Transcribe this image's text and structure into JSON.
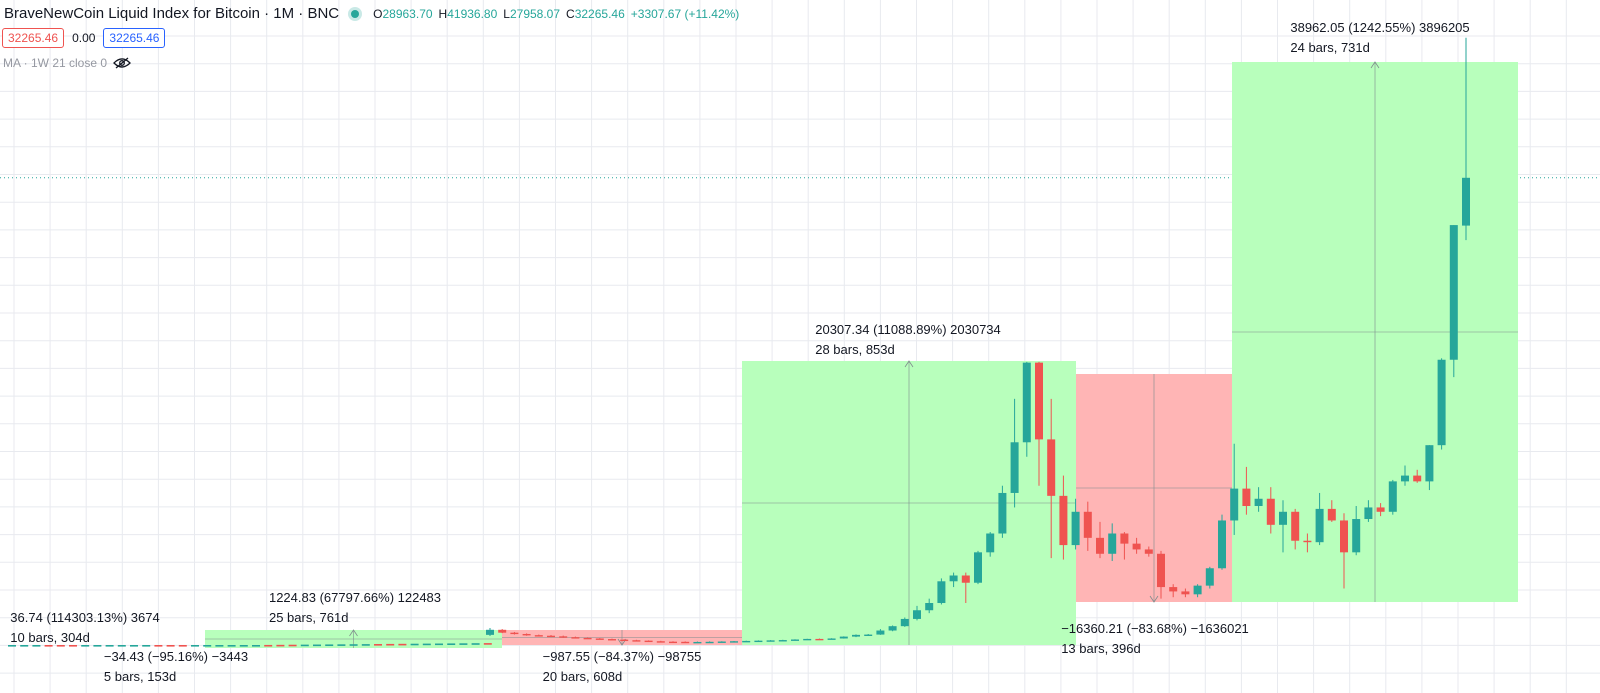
{
  "legend": {
    "title": "BraveNewCoin Liquid Index for Bitcoin · 1M · BNC",
    "open_key": "O",
    "open": "28963.70",
    "high_key": "H",
    "high": "41936.80",
    "low_key": "L",
    "low": "27958.07",
    "close_key": "C",
    "close": "32265.46",
    "change": "+3307.67 (+11.42%)"
  },
  "price_boxes": {
    "bid": "32265.46",
    "spread": "0.00",
    "ask": "32265.46"
  },
  "indicator": {
    "label": "MA · 1W 21 close 0",
    "icon": "eye-crossed-icon"
  },
  "colors": {
    "up": "#26a69a",
    "down": "#ef5350",
    "gain_fill": "#b8ffbc",
    "loss_fill": "#ffb5b5",
    "grid": "#e8eaef"
  },
  "measurements": [
    {
      "line1": "36.74 (114303.13%) 3674",
      "line2": "10 bars, 304d"
    },
    {
      "line1": "−34.43 (−95.16%) −3443",
      "line2": "5 bars, 153d"
    },
    {
      "line1": "1224.83 (67797.66%) 122483",
      "line2": "25 bars, 761d"
    },
    {
      "line1": "−987.55 (−84.37%) −98755",
      "line2": "20 bars, 608d"
    },
    {
      "line1": "20307.34 (11088.89%) 2030734",
      "line2": "28 bars, 853d"
    },
    {
      "line1": "−16360.21 (−83.68%) −1636021",
      "line2": "13 bars, 396d"
    },
    {
      "line1": "38962.05 (1242.55%) 3896205",
      "line2": "24 bars, 731d"
    }
  ],
  "chart_data": {
    "type": "candlestick",
    "interval": "1M",
    "last_close": 32265.46,
    "grid": true,
    "ranges": [
      {
        "kind": "gain",
        "start_price": 0.03,
        "change": 36.74,
        "pct": 114303.13,
        "bars": 10,
        "days": 304
      },
      {
        "kind": "loss",
        "change": -34.43,
        "pct": -95.16,
        "bars": 5,
        "days": 153
      },
      {
        "kind": "gain",
        "start_price": 1.81,
        "change": 1224.83,
        "pct": 67797.66,
        "bars": 25,
        "days": 761
      },
      {
        "kind": "loss",
        "start_price": 1170.38,
        "change": -987.55,
        "pct": -84.37,
        "bars": 20,
        "days": 608
      },
      {
        "kind": "gain",
        "start_price": 183.13,
        "change": 20307.34,
        "pct": 11088.89,
        "bars": 28,
        "days": 853
      },
      {
        "kind": "loss",
        "start_price": 19550.9,
        "change": -16360.21,
        "pct": -83.68,
        "bars": 13,
        "days": 396
      },
      {
        "kind": "gain",
        "start_price": 3135.69,
        "change": 38962.05,
        "pct": 1242.55,
        "bars": 24,
        "days": 731
      }
    ],
    "candles": [
      {
        "o": 700,
        "h": 1170,
        "l": 620,
        "c": 1050
      },
      {
        "o": 1050,
        "h": 1100,
        "l": 820,
        "c": 850
      },
      {
        "o": 850,
        "h": 900,
        "l": 720,
        "c": 760
      },
      {
        "o": 760,
        "h": 800,
        "l": 640,
        "c": 680
      },
      {
        "o": 680,
        "h": 720,
        "l": 600,
        "c": 640
      },
      {
        "o": 640,
        "h": 690,
        "l": 560,
        "c": 600
      },
      {
        "o": 600,
        "h": 650,
        "l": 500,
        "c": 540
      },
      {
        "o": 540,
        "h": 580,
        "l": 460,
        "c": 490
      },
      {
        "o": 490,
        "h": 520,
        "l": 420,
        "c": 450
      },
      {
        "o": 450,
        "h": 480,
        "l": 380,
        "c": 410
      },
      {
        "o": 410,
        "h": 440,
        "l": 340,
        "c": 370
      },
      {
        "o": 370,
        "h": 400,
        "l": 300,
        "c": 330
      },
      {
        "o": 330,
        "h": 360,
        "l": 270,
        "c": 300
      },
      {
        "o": 300,
        "h": 320,
        "l": 230,
        "c": 260
      },
      {
        "o": 260,
        "h": 290,
        "l": 200,
        "c": 230
      },
      {
        "o": 230,
        "h": 260,
        "l": 190,
        "c": 220
      },
      {
        "o": 220,
        "h": 250,
        "l": 190,
        "c": 200
      },
      {
        "o": 200,
        "h": 240,
        "l": 180,
        "c": 210
      },
      {
        "o": 210,
        "h": 250,
        "l": 190,
        "c": 220
      },
      {
        "o": 220,
        "h": 260,
        "l": 200,
        "c": 240
      },
      {
        "o": 240,
        "h": 280,
        "l": 220,
        "c": 260
      },
      {
        "o": 260,
        "h": 300,
        "l": 240,
        "c": 280
      },
      {
        "o": 280,
        "h": 320,
        "l": 260,
        "c": 300
      },
      {
        "o": 300,
        "h": 340,
        "l": 280,
        "c": 320
      },
      {
        "o": 320,
        "h": 360,
        "l": 300,
        "c": 340
      },
      {
        "o": 340,
        "h": 400,
        "l": 320,
        "c": 380
      },
      {
        "o": 380,
        "h": 430,
        "l": 360,
        "c": 420
      },
      {
        "o": 420,
        "h": 450,
        "l": 380,
        "c": 400
      },
      {
        "o": 400,
        "h": 470,
        "l": 380,
        "c": 450
      },
      {
        "o": 450,
        "h": 600,
        "l": 440,
        "c": 580
      },
      {
        "o": 580,
        "h": 730,
        "l": 540,
        "c": 700
      },
      {
        "o": 700,
        "h": 760,
        "l": 650,
        "c": 720
      },
      {
        "o": 720,
        "h": 1100,
        "l": 700,
        "c": 1000
      },
      {
        "o": 1000,
        "h": 1350,
        "l": 950,
        "c": 1300
      },
      {
        "o": 1300,
        "h": 1900,
        "l": 1250,
        "c": 1800
      },
      {
        "o": 1800,
        "h": 2700,
        "l": 1700,
        "c": 2400
      },
      {
        "o": 2400,
        "h": 3200,
        "l": 2200,
        "c": 2900
      },
      {
        "o": 2900,
        "h": 4600,
        "l": 2800,
        "c": 4400
      },
      {
        "o": 4400,
        "h": 5000,
        "l": 4000,
        "c": 4800
      },
      {
        "o": 4800,
        "h": 5000,
        "l": 2900,
        "c": 4300
      },
      {
        "o": 4300,
        "h": 6500,
        "l": 4200,
        "c": 6400
      },
      {
        "o": 6400,
        "h": 7800,
        "l": 6100,
        "c": 7700
      },
      {
        "o": 7700,
        "h": 11000,
        "l": 7400,
        "c": 10500
      },
      {
        "o": 10500,
        "h": 17000,
        "l": 9500,
        "c": 14000
      },
      {
        "o": 14000,
        "h": 19550,
        "l": 13000,
        "c": 19500
      },
      {
        "o": 19500,
        "h": 19550,
        "l": 11000,
        "c": 14200
      },
      {
        "o": 14200,
        "h": 17000,
        "l": 6000,
        "c": 10300
      },
      {
        "o": 10300,
        "h": 11700,
        "l": 5900,
        "c": 6900
      },
      {
        "o": 6900,
        "h": 10100,
        "l": 6600,
        "c": 9200
      },
      {
        "o": 9200,
        "h": 9900,
        "l": 6500,
        "c": 7400
      },
      {
        "o": 7400,
        "h": 8500,
        "l": 6000,
        "c": 6300
      },
      {
        "o": 6300,
        "h": 8400,
        "l": 5800,
        "c": 7700
      },
      {
        "o": 7700,
        "h": 7800,
        "l": 5900,
        "c": 7000
      },
      {
        "o": 7000,
        "h": 7400,
        "l": 6300,
        "c": 6600
      },
      {
        "o": 6600,
        "h": 6800,
        "l": 6100,
        "c": 6300
      },
      {
        "o": 6300,
        "h": 6500,
        "l": 3200,
        "c": 4000
      },
      {
        "o": 4000,
        "h": 4200,
        "l": 3300,
        "c": 3700
      },
      {
        "o": 3700,
        "h": 3900,
        "l": 3300,
        "c": 3500
      },
      {
        "o": 3500,
        "h": 4200,
        "l": 3300,
        "c": 4100
      },
      {
        "o": 4100,
        "h": 5400,
        "l": 3900,
        "c": 5300
      },
      {
        "o": 5300,
        "h": 9000,
        "l": 5200,
        "c": 8600
      },
      {
        "o": 8600,
        "h": 13900,
        "l": 7600,
        "c": 10800
      },
      {
        "o": 10800,
        "h": 12300,
        "l": 9000,
        "c": 9600
      },
      {
        "o": 9600,
        "h": 10900,
        "l": 9200,
        "c": 10100
      },
      {
        "o": 10100,
        "h": 10900,
        "l": 7700,
        "c": 8300
      },
      {
        "o": 8300,
        "h": 10000,
        "l": 6400,
        "c": 9200
      },
      {
        "o": 9200,
        "h": 9400,
        "l": 6600,
        "c": 7200
      },
      {
        "o": 7200,
        "h": 7700,
        "l": 6400,
        "c": 7100
      },
      {
        "o": 7100,
        "h": 10500,
        "l": 6900,
        "c": 9400
      },
      {
        "o": 9400,
        "h": 10000,
        "l": 8500,
        "c": 8600
      },
      {
        "o": 8600,
        "h": 9100,
        "l": 3900,
        "c": 6400
      },
      {
        "o": 6400,
        "h": 9600,
        "l": 6200,
        "c": 8700
      },
      {
        "o": 8700,
        "h": 10000,
        "l": 8500,
        "c": 9500
      },
      {
        "o": 9500,
        "h": 9800,
        "l": 8900,
        "c": 9200
      },
      {
        "o": 9200,
        "h": 11400,
        "l": 9000,
        "c": 11300
      },
      {
        "o": 11300,
        "h": 12400,
        "l": 11000,
        "c": 11700
      },
      {
        "o": 11700,
        "h": 12100,
        "l": 11200,
        "c": 11300
      },
      {
        "o": 11300,
        "h": 13800,
        "l": 10700,
        "c": 13800
      },
      {
        "o": 13800,
        "h": 19800,
        "l": 13500,
        "c": 19700
      },
      {
        "o": 19700,
        "h": 29000,
        "l": 18500,
        "c": 29000
      },
      {
        "o": 28963.7,
        "h": 41936.8,
        "l": 27958.07,
        "c": 32265.46
      }
    ]
  }
}
